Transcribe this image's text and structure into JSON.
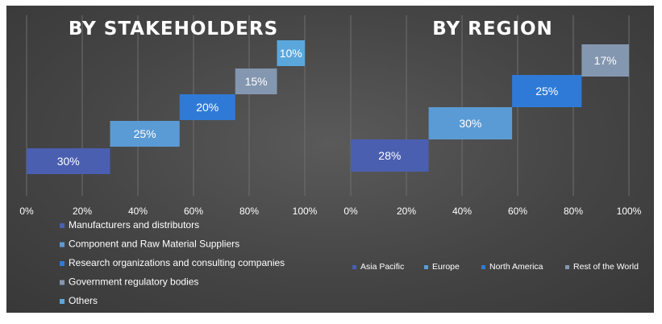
{
  "chart_data": [
    {
      "type": "bar",
      "subtype": "waterfall-horizontal",
      "title": "BY STAKEHOLDERS",
      "xlim": [
        0,
        100
      ],
      "x_ticks": [
        "0%",
        "20%",
        "40%",
        "60%",
        "80%",
        "100%"
      ],
      "grid": true,
      "legend_position": "bottom-left",
      "series": [
        {
          "name": "Manufacturers and distributors",
          "value": 30,
          "label": "30%",
          "color": "#4a5fb0"
        },
        {
          "name": "Component and Raw Material Suppliers",
          "value": 25,
          "label": "25%",
          "color": "#5b9bd5"
        },
        {
          "name": "Research organizations and consulting companies",
          "value": 20,
          "label": "20%",
          "color": "#2f7ad6"
        },
        {
          "name": "Government regulatory bodies",
          "value": 15,
          "label": "15%",
          "color": "#8497b0"
        },
        {
          "name": "Others",
          "value": 10,
          "label": "10%",
          "color": "#5ba7dc"
        }
      ]
    },
    {
      "type": "bar",
      "subtype": "waterfall-horizontal",
      "title": "BY REGION",
      "xlim": [
        0,
        100
      ],
      "x_ticks": [
        "0%",
        "20%",
        "40%",
        "60%",
        "80%",
        "100%"
      ],
      "grid": true,
      "legend_position": "bottom",
      "series": [
        {
          "name": "Asia Pacific",
          "value": 28,
          "label": "28%",
          "color": "#4a5fb0"
        },
        {
          "name": "Europe",
          "value": 30,
          "label": "30%",
          "color": "#5b9bd5"
        },
        {
          "name": "North America",
          "value": 25,
          "label": "25%",
          "color": "#2f7ad6"
        },
        {
          "name": "Rest of the World",
          "value": 17,
          "label": "17%",
          "color": "#8497b0"
        }
      ]
    }
  ]
}
